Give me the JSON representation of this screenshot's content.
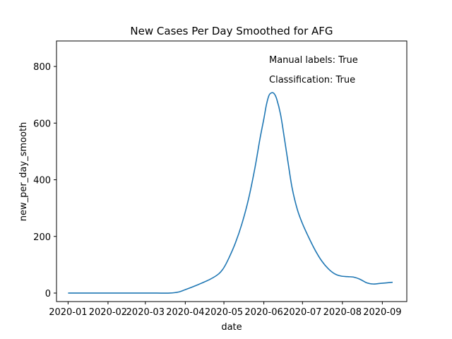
{
  "chart_data": {
    "type": "line",
    "title": "New Cases Per Day Smoothed for AFG",
    "xlabel": "date",
    "ylabel": "new_per_day_smooth",
    "xlim": [
      "2019-12-23",
      "2020-09-20"
    ],
    "ylim": [
      -30,
      890
    ],
    "grid": false,
    "x_ticks": [
      "2020-01",
      "2020-02",
      "2020-03",
      "2020-04",
      "2020-05",
      "2020-06",
      "2020-07",
      "2020-08",
      "2020-09"
    ],
    "y_ticks": [
      0,
      200,
      400,
      600,
      800
    ],
    "annotations": [
      "Manual labels: True",
      "Classification: True"
    ],
    "series": [
      {
        "color": "#1f77b4",
        "x": [
          "2020-01-01",
          "2020-01-15",
          "2020-02-01",
          "2020-02-15",
          "2020-03-01",
          "2020-03-10",
          "2020-03-20",
          "2020-03-27",
          "2020-04-01",
          "2020-04-10",
          "2020-04-20",
          "2020-04-27",
          "2020-05-01",
          "2020-05-05",
          "2020-05-10",
          "2020-05-15",
          "2020-05-20",
          "2020-05-25",
          "2020-05-29",
          "2020-06-01",
          "2020-06-03",
          "2020-06-05",
          "2020-06-07",
          "2020-06-09",
          "2020-06-11",
          "2020-06-14",
          "2020-06-17",
          "2020-06-20",
          "2020-06-23",
          "2020-06-27",
          "2020-07-01",
          "2020-07-06",
          "2020-07-11",
          "2020-07-16",
          "2020-07-21",
          "2020-07-26",
          "2020-07-31",
          "2020-08-05",
          "2020-08-10",
          "2020-08-15",
          "2020-08-20",
          "2020-08-25",
          "2020-08-30",
          "2020-09-04",
          "2020-09-09"
        ],
        "y": [
          0,
          0,
          0,
          0,
          0,
          0,
          0,
          4,
          12,
          28,
          48,
          68,
          90,
          125,
          178,
          245,
          330,
          440,
          545,
          615,
          665,
          698,
          707,
          704,
          685,
          630,
          545,
          455,
          370,
          295,
          245,
          195,
          150,
          113,
          86,
          68,
          60,
          58,
          56,
          48,
          36,
          32,
          34,
          36,
          38
        ]
      }
    ]
  }
}
